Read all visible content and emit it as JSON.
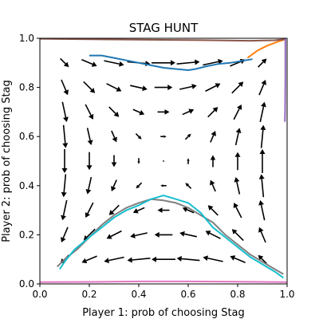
{
  "chart_data": {
    "type": "quiver",
    "title": "STAG HUNT",
    "xlabel": "Player 1: prob of choosing Stag",
    "ylabel": "Player 2: prob of choosing Stag",
    "xlim": [
      0.0,
      1.0
    ],
    "ylim": [
      0.0,
      1.0
    ],
    "xticks": [
      "0.0",
      "0.2",
      "0.4",
      "0.6",
      "0.8",
      "1.0"
    ],
    "yticks": [
      "0.0",
      "0.2",
      "0.4",
      "0.6",
      "0.8",
      "1.0"
    ],
    "grid": false,
    "legend": "none",
    "vector_field": {
      "grid_points": [
        0.1,
        0.2,
        0.3,
        0.4,
        0.5,
        0.6,
        0.7,
        0.8,
        0.9
      ],
      "dynamics": "stag hunt replicator: dx = x(1-x)(y - 0.5), dy = y(1-y)(x - 0.5)",
      "arrow_color": "#000000"
    },
    "series": [
      {
        "color": "#1f77b4",
        "points": [
          [
            0.2,
            0.93
          ],
          [
            0.25,
            0.93
          ],
          [
            0.3,
            0.92
          ],
          [
            0.35,
            0.91
          ],
          [
            0.4,
            0.9
          ],
          [
            0.45,
            0.89
          ],
          [
            0.5,
            0.88
          ],
          [
            0.55,
            0.875
          ],
          [
            0.6,
            0.87
          ],
          [
            0.63,
            0.875
          ],
          [
            0.67,
            0.885
          ],
          [
            0.72,
            0.895
          ],
          [
            0.77,
            0.9
          ],
          [
            0.8,
            0.905
          ],
          [
            0.83,
            0.91
          ],
          [
            0.86,
            0.915
          ]
        ]
      },
      {
        "color": "#ff7f0e",
        "points": [
          [
            0.84,
            0.92
          ],
          [
            0.88,
            0.95
          ],
          [
            0.92,
            0.97
          ],
          [
            0.96,
            0.985
          ],
          [
            0.99,
            0.995
          ]
        ]
      },
      {
        "color": "#8c564b",
        "points": [
          [
            0.0,
            0.998
          ],
          [
            0.3,
            0.995
          ],
          [
            0.6,
            0.993
          ],
          [
            0.85,
            0.99
          ],
          [
            0.95,
            0.992
          ],
          [
            0.99,
            0.996
          ]
        ]
      },
      {
        "color": "#9467bd",
        "points": [
          [
            0.993,
            1.0
          ],
          [
            0.993,
            0.85
          ],
          [
            0.992,
            0.7
          ],
          [
            0.991,
            0.66
          ]
        ]
      },
      {
        "color": "#e377c2",
        "points": [
          [
            0.0,
            0.007
          ],
          [
            0.2,
            0.008
          ],
          [
            0.4,
            0.01
          ],
          [
            0.6,
            0.01
          ],
          [
            0.8,
            0.009
          ],
          [
            1.0,
            0.007
          ]
        ]
      },
      {
        "color": "#7f7f7f",
        "points": [
          [
            0.07,
            0.07
          ],
          [
            0.1,
            0.1
          ],
          [
            0.15,
            0.14
          ],
          [
            0.2,
            0.19
          ],
          [
            0.25,
            0.24
          ],
          [
            0.3,
            0.28
          ],
          [
            0.35,
            0.31
          ],
          [
            0.4,
            0.33
          ],
          [
            0.45,
            0.345
          ],
          [
            0.5,
            0.34
          ],
          [
            0.55,
            0.33
          ],
          [
            0.6,
            0.31
          ],
          [
            0.65,
            0.28
          ],
          [
            0.7,
            0.25
          ],
          [
            0.75,
            0.2
          ],
          [
            0.8,
            0.16
          ],
          [
            0.85,
            0.12
          ],
          [
            0.9,
            0.09
          ],
          [
            0.95,
            0.06
          ],
          [
            0.985,
            0.04
          ]
        ]
      },
      {
        "color": "#17becf",
        "points": [
          [
            0.08,
            0.06
          ],
          [
            0.1,
            0.09
          ],
          [
            0.14,
            0.14
          ],
          [
            0.2,
            0.19
          ],
          [
            0.25,
            0.23
          ],
          [
            0.3,
            0.27
          ],
          [
            0.35,
            0.3
          ],
          [
            0.4,
            0.32
          ],
          [
            0.45,
            0.345
          ],
          [
            0.5,
            0.36
          ],
          [
            0.55,
            0.345
          ],
          [
            0.6,
            0.33
          ],
          [
            0.65,
            0.29
          ],
          [
            0.7,
            0.23
          ],
          [
            0.75,
            0.19
          ],
          [
            0.8,
            0.15
          ],
          [
            0.85,
            0.11
          ],
          [
            0.9,
            0.08
          ],
          [
            0.95,
            0.05
          ],
          [
            0.985,
            0.025
          ]
        ]
      }
    ]
  }
}
